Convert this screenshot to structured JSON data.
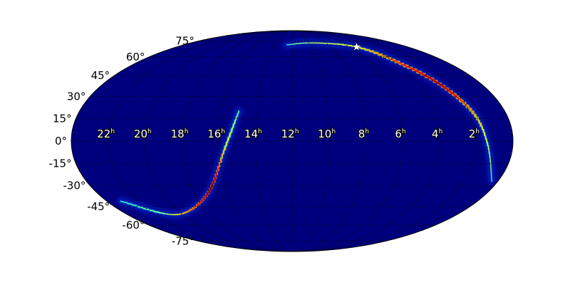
{
  "chart_data": {
    "type": "heatmap",
    "projection": "mollweide",
    "grid": true,
    "background_color": "#00007f",
    "colormap": "jet",
    "lat_ticks": [
      "75°",
      "60°",
      "45°",
      "30°",
      "15°",
      "0°",
      "-15°",
      "-30°",
      "-45°",
      "-60°",
      "-75°"
    ],
    "lat_values": [
      75,
      60,
      45,
      30,
      15,
      0,
      -15,
      -30,
      -45,
      -60,
      -75
    ],
    "ra_ticks": [
      "22",
      "20",
      "18",
      "16",
      "14",
      "12",
      "10",
      "8",
      "6",
      "4",
      "2"
    ],
    "ra_values": [
      22,
      20,
      18,
      16,
      14,
      12,
      10,
      8,
      6,
      4,
      2
    ],
    "ra_unit": "h",
    "probability_arcs": [
      {
        "points": [
          {
            "ra": 12.6,
            "dec": 71,
            "p": 0.15
          },
          {
            "ra": 9.5,
            "dec": 73,
            "p": 0.3
          },
          {
            "ra": 5.3,
            "dec": 69,
            "p": 0.45
          },
          {
            "ra": 3.75,
            "dec": 55,
            "p": 0.75
          },
          {
            "ra": 2.6,
            "dec": 38,
            "p": 0.95
          },
          {
            "ra": 1.8,
            "dec": 18,
            "p": 0.6
          },
          {
            "ra": 1.35,
            "dec": -3,
            "p": 0.35
          },
          {
            "ra": 0.35,
            "dec": -27,
            "p": 0.15
          }
        ]
      },
      {
        "points": [
          {
            "ra": 15.0,
            "dec": 20,
            "p": 0.2
          },
          {
            "ra": 15.7,
            "dec": -6,
            "p": 0.5
          },
          {
            "ra": 16.9,
            "dec": -32,
            "p": 1.0
          },
          {
            "ra": 18.9,
            "dec": -47,
            "p": 0.7
          },
          {
            "ra": 21.0,
            "dec": -51,
            "p": 0.3
          },
          {
            "ra": 23.1,
            "dec": -41,
            "p": 0.12
          }
        ]
      }
    ],
    "marker": {
      "symbol": "star",
      "ra": 5.3,
      "dec": 69,
      "color": "#ffffff"
    }
  }
}
